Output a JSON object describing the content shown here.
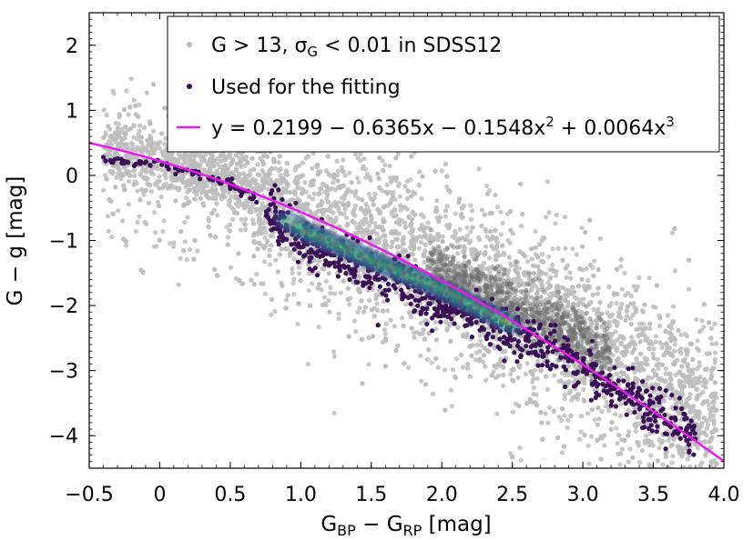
{
  "chart_data": {
    "type": "scatter",
    "title": "",
    "xlabel": {
      "main": "G",
      "sub1": "BP",
      "mid": " − G",
      "sub2": "RP",
      "unit": " [mag]"
    },
    "ylabel": "G − g [mag]",
    "xlim": [
      -0.5,
      4.0
    ],
    "ylim": [
      -4.5,
      2.5
    ],
    "xticks": [
      -0.5,
      0,
      0.5,
      1.0,
      1.5,
      2.0,
      2.5,
      3.0,
      3.5,
      4.0
    ],
    "xtick_labels": [
      "−0.5",
      "0",
      "0.5",
      "1.0",
      "1.5",
      "2.0",
      "2.5",
      "3.0",
      "3.5",
      "4.0"
    ],
    "yticks": [
      2,
      1,
      0,
      -1,
      -2,
      -3,
      -4
    ],
    "ytick_labels": [
      "2",
      "1",
      "0",
      "−1",
      "−2",
      "−3",
      "−4"
    ],
    "grid": false,
    "legend_position": "top-right",
    "legend": [
      {
        "key": "all",
        "text": "G > 13,  σ",
        "sub": "G",
        "tail": " < 0.01 in SDSS12",
        "color": "#bdbdbd"
      },
      {
        "key": "used",
        "text": "Used for the fitting",
        "color": "#3b0f58"
      },
      {
        "key": "fit",
        "text": "y = 0.2199 − 0.6365x − 0.1548x",
        "sup1": "2",
        "mid": " + 0.0064x",
        "sup2": "3",
        "color": "#e81ce8"
      }
    ],
    "series": [
      {
        "name": "G > 13, σG < 0.01 in SDSS12",
        "kind": "background-scatter",
        "color": "#bdbdbd",
        "trend_points": [
          [
            -0.5,
            0.45
          ],
          [
            0.0,
            0.2
          ],
          [
            0.5,
            -0.05
          ],
          [
            1.0,
            -0.6
          ],
          [
            1.5,
            -1.05
          ],
          [
            2.0,
            -1.45
          ],
          [
            2.5,
            -1.95
          ],
          [
            3.0,
            -2.5
          ],
          [
            3.5,
            -3.15
          ],
          [
            4.0,
            -3.8
          ]
        ]
      },
      {
        "name": "Used for the fitting",
        "kind": "scatter",
        "color": "#3b0f58",
        "trend_points": [
          [
            -0.35,
            0.22
          ],
          [
            0.0,
            0.17
          ],
          [
            0.5,
            -0.13
          ],
          [
            0.8,
            -0.55
          ],
          [
            1.0,
            -0.88
          ],
          [
            1.5,
            -1.35
          ],
          [
            2.0,
            -1.8
          ],
          [
            2.5,
            -2.35
          ],
          [
            3.0,
            -2.95
          ],
          [
            3.5,
            -3.65
          ],
          [
            3.8,
            -4.0
          ]
        ]
      },
      {
        "name": "y = 0.2199 − 0.6365x − 0.1548x² + 0.0064x³",
        "kind": "line",
        "color": "#e81ce8",
        "coefficients": [
          0.2199,
          -0.6365,
          -0.1548,
          0.0064
        ],
        "x_range": [
          -0.5,
          4.0
        ]
      }
    ]
  }
}
